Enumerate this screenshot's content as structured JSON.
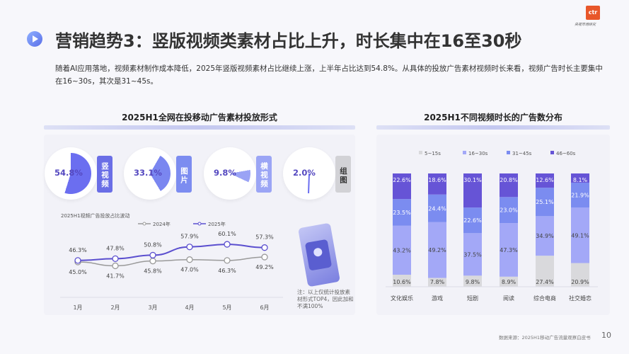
{
  "header": {
    "title": "营销趋势3：竖版视频类素材占比上升，时长集中在16至30秒",
    "logo_text": "ctr",
    "logo_sub": "央视市场研究",
    "description": "随着AI应用落地，视频素材制作成本降低，2025年竖版视频素材占比继续上涨，上半年占比达到54.8%。从具体的投放广告素材视频时长来看，视频广告时长主要集中在16~30s，其次是31~45s。",
    "icon": "play-circle-icon"
  },
  "left_panel": {
    "title": "2025H1全网在投移动广告素材投放形式",
    "formats": [
      {
        "label": "竖视频",
        "value": 54.8,
        "text": "54.8%",
        "color": "#6b6ef0",
        "tag_color": "#6a6ee6"
      },
      {
        "label": "图片",
        "value": 33.1,
        "text": "33.1%",
        "color": "#7a86f0",
        "tag_color": "#7c8cf0"
      },
      {
        "label": "横视频",
        "value": 9.8,
        "text": "9.8%",
        "color": "#9aa3f5",
        "tag_color": "#9ba5f5"
      },
      {
        "label": "组图",
        "value": 2.0,
        "text": "2.0%",
        "color": "#6b6ef0",
        "tag_color": "#d2d2d6"
      }
    ],
    "note": "注：以上仅统计投放素材形式TOP4，因此加和不满100%"
  },
  "chart_data": [
    {
      "type": "line",
      "title": "2025H1视频广告投放占比波动",
      "categories": [
        "1月",
        "2月",
        "3月",
        "4月",
        "5月",
        "6月"
      ],
      "series": [
        {
          "name": "2024年",
          "values": [
            45.0,
            41.7,
            45.8,
            47.0,
            46.3,
            49.2
          ],
          "color": "#9a9a9a"
        },
        {
          "name": "2025年",
          "values": [
            46.3,
            47.8,
            50.8,
            57.9,
            60.1,
            57.3
          ],
          "color": "#5b4fcf"
        }
      ],
      "unit": "%"
    },
    {
      "type": "bar",
      "stacked": true,
      "title": "2025H1不同视频时长的广告数分布",
      "categories": [
        "文化娱乐",
        "游戏",
        "短剧",
        "阅读",
        "综合电商",
        "社交婚恋"
      ],
      "series": [
        {
          "name": "5~15s",
          "values": [
            10.6,
            7.8,
            9.8,
            8.9,
            27.4,
            20.9
          ],
          "color": "#d9d9dc"
        },
        {
          "name": "16~30s",
          "values": [
            43.2,
            49.2,
            37.5,
            47.3,
            34.9,
            49.1
          ],
          "color": "#a3a8f7"
        },
        {
          "name": "31~45s",
          "values": [
            23.5,
            24.4,
            22.6,
            23.0,
            25.1,
            21.9
          ],
          "color": "#7b8cf0"
        },
        {
          "name": "46~60s",
          "values": [
            22.6,
            18.6,
            30.1,
            20.8,
            12.6,
            8.1
          ],
          "color": "#6654d6"
        }
      ],
      "unit": "%",
      "legend": "top"
    }
  ],
  "footer": {
    "source": "数据来源：2025H1移动广告流量观察白皮书",
    "page": "10"
  }
}
